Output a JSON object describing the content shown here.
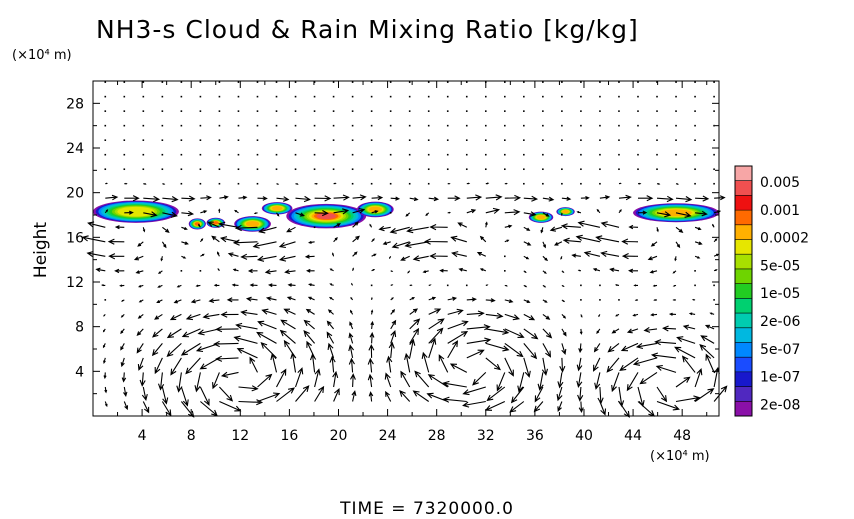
{
  "chart_data": {
    "type": "heatmap",
    "title": "NH3-s Cloud & Rain Mixing Ratio [kg/kg]",
    "ylabel": "Height",
    "xlabel": "",
    "x_unit_label": "(×10⁴ m)",
    "y_unit_label": "(×10⁴ m)",
    "xlim": [
      0,
      51
    ],
    "ylim": [
      0,
      30
    ],
    "x_ticks": [
      "4",
      "8",
      "12",
      "16",
      "20",
      "24",
      "28",
      "32",
      "36",
      "40",
      "44",
      "48"
    ],
    "y_ticks": [
      "4",
      "8",
      "12",
      "16",
      "20",
      "24",
      "28"
    ],
    "footer": "TIME = 7320000.0",
    "colorbar": {
      "labels": [
        "0.005",
        "0.001",
        "0.0002",
        "5e-05",
        "1e-05",
        "2e-06",
        "5e-07",
        "1e-07",
        "2e-08"
      ],
      "colors": [
        "#f7a6a6",
        "#f05050",
        "#ee1111",
        "#ff6a00",
        "#ffb000",
        "#e6e600",
        "#a8e000",
        "#6ed400",
        "#22cc22",
        "#00d070",
        "#00ccb0",
        "#00b8e0",
        "#0088ff",
        "#1a4cff",
        "#1818cc",
        "#5028c0",
        "#8a10a8"
      ]
    },
    "clouds": [
      {
        "x": 3.5,
        "y": 18.3,
        "w": 7.0,
        "h": 2.0,
        "c": 2.3
      },
      {
        "x": 8.5,
        "y": 17.2,
        "w": 1.4,
        "h": 1.0,
        "c": 0.4
      },
      {
        "x": 10.0,
        "y": 17.3,
        "w": 1.5,
        "h": 0.9,
        "c": 1.0
      },
      {
        "x": 13.0,
        "y": 17.2,
        "w": 3.0,
        "h": 1.4,
        "c": 1.4
      },
      {
        "x": 15.0,
        "y": 18.6,
        "w": 2.5,
        "h": 1.1,
        "c": 1.6
      },
      {
        "x": 19.0,
        "y": 17.9,
        "w": 6.5,
        "h": 2.2,
        "c": 0.0
      },
      {
        "x": 23.0,
        "y": 18.5,
        "w": 3.0,
        "h": 1.4,
        "c": 1.6
      },
      {
        "x": 36.5,
        "y": 17.8,
        "w": 2.0,
        "h": 1.0,
        "c": 1.6
      },
      {
        "x": 38.5,
        "y": 18.3,
        "w": 1.5,
        "h": 0.8,
        "c": 2.0
      },
      {
        "x": 47.5,
        "y": 18.2,
        "w": 7.0,
        "h": 1.7,
        "c": 1.4
      }
    ],
    "circulations": [
      {
        "x": 12,
        "y": 3.5,
        "r": 6,
        "sense": 1
      },
      {
        "x": 31,
        "y": 4.5,
        "r": 5,
        "sense": -1
      },
      {
        "x": 47,
        "y": 3.0,
        "r": 4.5,
        "sense": 1
      }
    ]
  }
}
